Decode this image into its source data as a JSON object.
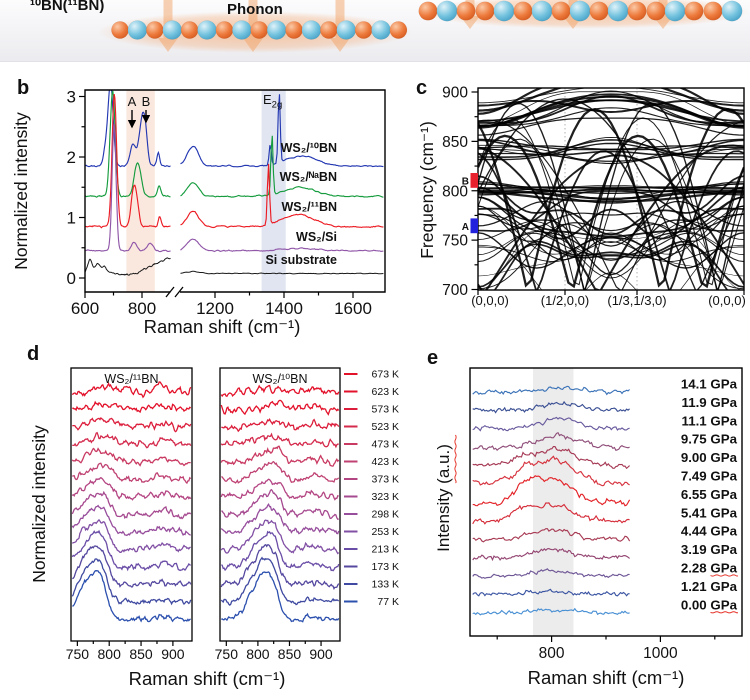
{
  "schematic": {
    "isotope_label": "¹⁰BN(¹¹BN)",
    "phonon_label": "Phonon",
    "atom_colors": {
      "boron": "#e2622a",
      "nitrogen": "#58b6d8"
    },
    "arrow_color": "#f2a368"
  },
  "chart_data": [
    {
      "id": "b",
      "panel_label": "b",
      "type": "line",
      "xlabel": "Raman shift (cm⁻¹)",
      "ylabel": "Normalized intensity",
      "yticks": [
        "0",
        "1",
        "2",
        "3"
      ],
      "xticks": [
        "600",
        "800",
        "1200",
        "1400",
        "1600"
      ],
      "xtick_values": [
        600,
        800,
        1200,
        1400,
        1600
      ],
      "axis_break": true,
      "xlim_segments": [
        [
          600,
          905
        ],
        [
          1100,
          1690
        ]
      ],
      "ylim": [
        0,
        3.15
      ],
      "shaded_bands": [
        {
          "from": 745,
          "to": 845,
          "color": "#f6d9c9"
        },
        {
          "from": 1335,
          "to": 1405,
          "color": "#ccd3e8"
        }
      ],
      "annotations": {
        "peak_a": "A",
        "peak_a_x": 765,
        "peak_b": "B",
        "peak_b_x": 814,
        "e2g_main": "E",
        "e2g_sub": "2g",
        "e2g_x": 1368
      },
      "series": [
        {
          "label": "WS₂/¹⁰BN",
          "color": "#2438b2",
          "offset": 1.85,
          "noise": 0.018,
          "peaks": [
            [
              690,
              9,
              1.35
            ],
            [
              672,
              8,
              0.25
            ],
            [
              768,
              10,
              0.35
            ],
            [
              800,
              11,
              0.72
            ],
            [
              812,
              8,
              0.35
            ],
            [
              857,
              5,
              0.22
            ],
            [
              1136,
              16,
              0.33
            ],
            [
              1360,
              3,
              0.35
            ],
            [
              1386,
              3,
              1.18
            ],
            [
              1450,
              45,
              0.17
            ]
          ]
        },
        {
          "label": "WS₂/ᴺᵃBN",
          "color": "#169c3e",
          "offset": 1.35,
          "noise": 0.018,
          "peaks": [
            [
              697,
              9,
              1.75
            ],
            [
              778,
              9,
              0.3
            ],
            [
              790,
              10,
              0.38
            ],
            [
              860,
              6,
              0.18
            ],
            [
              1136,
              16,
              0.22
            ],
            [
              1365,
              3,
              1.02
            ],
            [
              1445,
              45,
              0.15
            ]
          ]
        },
        {
          "label": "WS₂/¹¹BN",
          "color": "#ec1c24",
          "offset": 0.85,
          "noise": 0.02,
          "peaks": [
            [
              703,
              8,
              2.2
            ],
            [
              770,
              9,
              0.55
            ],
            [
              782,
              8,
              0.3
            ],
            [
              862,
              5,
              0.17
            ],
            [
              1136,
              16,
              0.26
            ],
            [
              1355,
              3,
              1.02
            ],
            [
              1440,
              45,
              0.2
            ]
          ]
        },
        {
          "label": "WS₂/Si",
          "color": "#9057a8",
          "offset": 0.45,
          "noise": 0.018,
          "peaks": [
            [
              702,
              7,
              2.1
            ],
            [
              772,
              10,
              0.13
            ],
            [
              828,
              10,
              0.13
            ],
            [
              1136,
              16,
              0.2
            ],
            [
              1450,
              50,
              0.04
            ]
          ]
        },
        {
          "label": "Si substrate",
          "color": "#1a1a1a",
          "offset": 0.1,
          "noise": 0.025,
          "ramp": true,
          "peaks": [
            [
              618,
              7,
              0.2
            ],
            [
              645,
              9,
              0.13
            ],
            [
              668,
              8,
              0.09
            ],
            [
              1136,
              20,
              0.03
            ]
          ]
        }
      ]
    },
    {
      "id": "c",
      "panel_label": "c",
      "type": "line",
      "ylabel": "Frequency (cm⁻¹)",
      "yticks": [
        "700",
        "750",
        "800",
        "850",
        "900"
      ],
      "ytick_values": [
        700,
        750,
        800,
        850,
        900
      ],
      "xticks": [
        "(0,0,0)",
        "(1/2,0,0)",
        "(1/3,1/3,0)",
        "(0,0,0)"
      ],
      "ylim": [
        700,
        900
      ],
      "markers": [
        {
          "label": "A",
          "color": "#2222dd",
          "freq_from": 757,
          "freq_to": 772
        },
        {
          "label": "B",
          "color": "#e8212e",
          "freq_from": 803,
          "freq_to": 818
        }
      ],
      "description": "Dense calculated phonon dispersion of isotope-mixed hBN along (0,0,0)-(1/2,0,0)-(1/3,1/3,0)-(0,0,0), bands spanning 700-900 cm⁻¹ with flat bundles near 795 and 840 cm⁻¹"
    },
    {
      "id": "d",
      "panel_label": "d",
      "type": "line",
      "xlabel": "Raman shift (cm⁻¹)",
      "ylabel": "Normalized intensity",
      "xticks": [
        "750",
        "800",
        "850",
        "900"
      ],
      "xtick_values": [
        750,
        800,
        850,
        900
      ],
      "xlim": [
        740,
        930
      ],
      "panels": [
        {
          "title": "WS₂/¹¹BN",
          "peak_center": 778
        },
        {
          "title": "WS₂/¹⁰BN",
          "peak_center": 813
        }
      ],
      "legend": [
        {
          "label": "673 K",
          "color": "#e3122b"
        },
        {
          "label": "623 K",
          "color": "#e3122b"
        },
        {
          "label": "573 K",
          "color": "#dc1e3c"
        },
        {
          "label": "523 K",
          "color": "#d42a4c"
        },
        {
          "label": "473 K",
          "color": "#c93a62"
        },
        {
          "label": "423 K",
          "color": "#bf4273"
        },
        {
          "label": "373 K",
          "color": "#b44583"
        },
        {
          "label": "323 K",
          "color": "#a64a90"
        },
        {
          "label": "298 K",
          "color": "#964d9c"
        },
        {
          "label": "253 K",
          "color": "#8150a5"
        },
        {
          "label": "213 K",
          "color": "#6a4da6"
        },
        {
          "label": "173 K",
          "color": "#54489f"
        },
        {
          "label": "133 K",
          "color": "#3f4aa0"
        },
        {
          "label": "77 K",
          "color": "#2c50ae"
        }
      ]
    },
    {
      "id": "e",
      "panel_label": "e",
      "type": "line",
      "xlabel": "Raman shift (cm⁻¹)",
      "ylabel": "Intensity (a.u.)",
      "ylabel_spellcheck_underline": true,
      "xticks": [
        "800",
        "1000"
      ],
      "xtick_values": [
        800,
        1000
      ],
      "xlim": [
        650,
        1150
      ],
      "shaded_band": {
        "from": 765,
        "to": 840,
        "color": "#dcdcdc"
      },
      "series": [
        {
          "label": "14.1 GPa",
          "color": "#3d74b8",
          "peak_center": 820,
          "peak_height": 4,
          "spellcheck_underline": false
        },
        {
          "label": "11.9 GPa",
          "color": "#3a4f93",
          "peak_center": 815,
          "peak_height": 7,
          "spellcheck_underline": false
        },
        {
          "label": "11.1 GPa",
          "color": "#6a5b9e",
          "peak_center": 812,
          "peak_height": 10,
          "spellcheck_underline": false
        },
        {
          "label": "9.75 GPa",
          "color": "#8f4e79",
          "peak_center": 810,
          "peak_height": 12,
          "spellcheck_underline": false
        },
        {
          "label": "9.00 GPa",
          "color": "#a63a55",
          "peak_center": 810,
          "peak_height": 16,
          "spellcheck_underline": false
        },
        {
          "label": "7.49 GPa",
          "color": "#d6333f",
          "peak_center": 806,
          "peak_height": 24,
          "spellcheck_underline": false
        },
        {
          "label": "6.55 GPa",
          "color": "#e32227",
          "peak_center": 800,
          "peak_height": 24,
          "spellcheck_underline": false
        },
        {
          "label": "5.41 GPa",
          "color": "#d52e3b",
          "peak_center": 798,
          "peak_height": 16,
          "spellcheck_underline": false
        },
        {
          "label": "4.44 GPa",
          "color": "#a83c55",
          "peak_center": 800,
          "peak_height": 10,
          "spellcheck_underline": false
        },
        {
          "label": "3.19 GPa",
          "color": "#944672",
          "peak_center": 798,
          "peak_height": 8,
          "spellcheck_underline": false
        },
        {
          "label": "2.28 GPa",
          "color": "#6f5796",
          "peak_center": 795,
          "peak_height": 5,
          "spellcheck_underline": true
        },
        {
          "label": "1.21 GPa",
          "color": "#3b55a2",
          "peak_center": 800,
          "peak_height": 3,
          "spellcheck_underline": false
        },
        {
          "label": "0.00 GPa",
          "color": "#4a90d4",
          "peak_center": 800,
          "peak_height": 3,
          "spellcheck_underline": true
        }
      ]
    }
  ]
}
